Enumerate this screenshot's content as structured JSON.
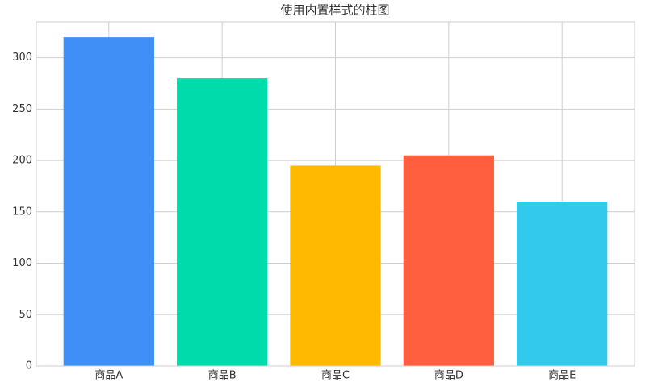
{
  "chart_data": {
    "type": "bar",
    "title": "使用内置样式的柱图",
    "categories": [
      "商品A",
      "商品B",
      "商品C",
      "商品D",
      "商品E"
    ],
    "values": [
      320,
      280,
      195,
      205,
      160
    ],
    "colors": [
      "#3f8ff7",
      "#00dbab",
      "#ffb900",
      "#ff5f3f",
      "#33c9ec"
    ],
    "ylim": [
      0,
      335
    ],
    "yticks": [
      0,
      50,
      100,
      150,
      200,
      250,
      300
    ],
    "grid": true
  }
}
